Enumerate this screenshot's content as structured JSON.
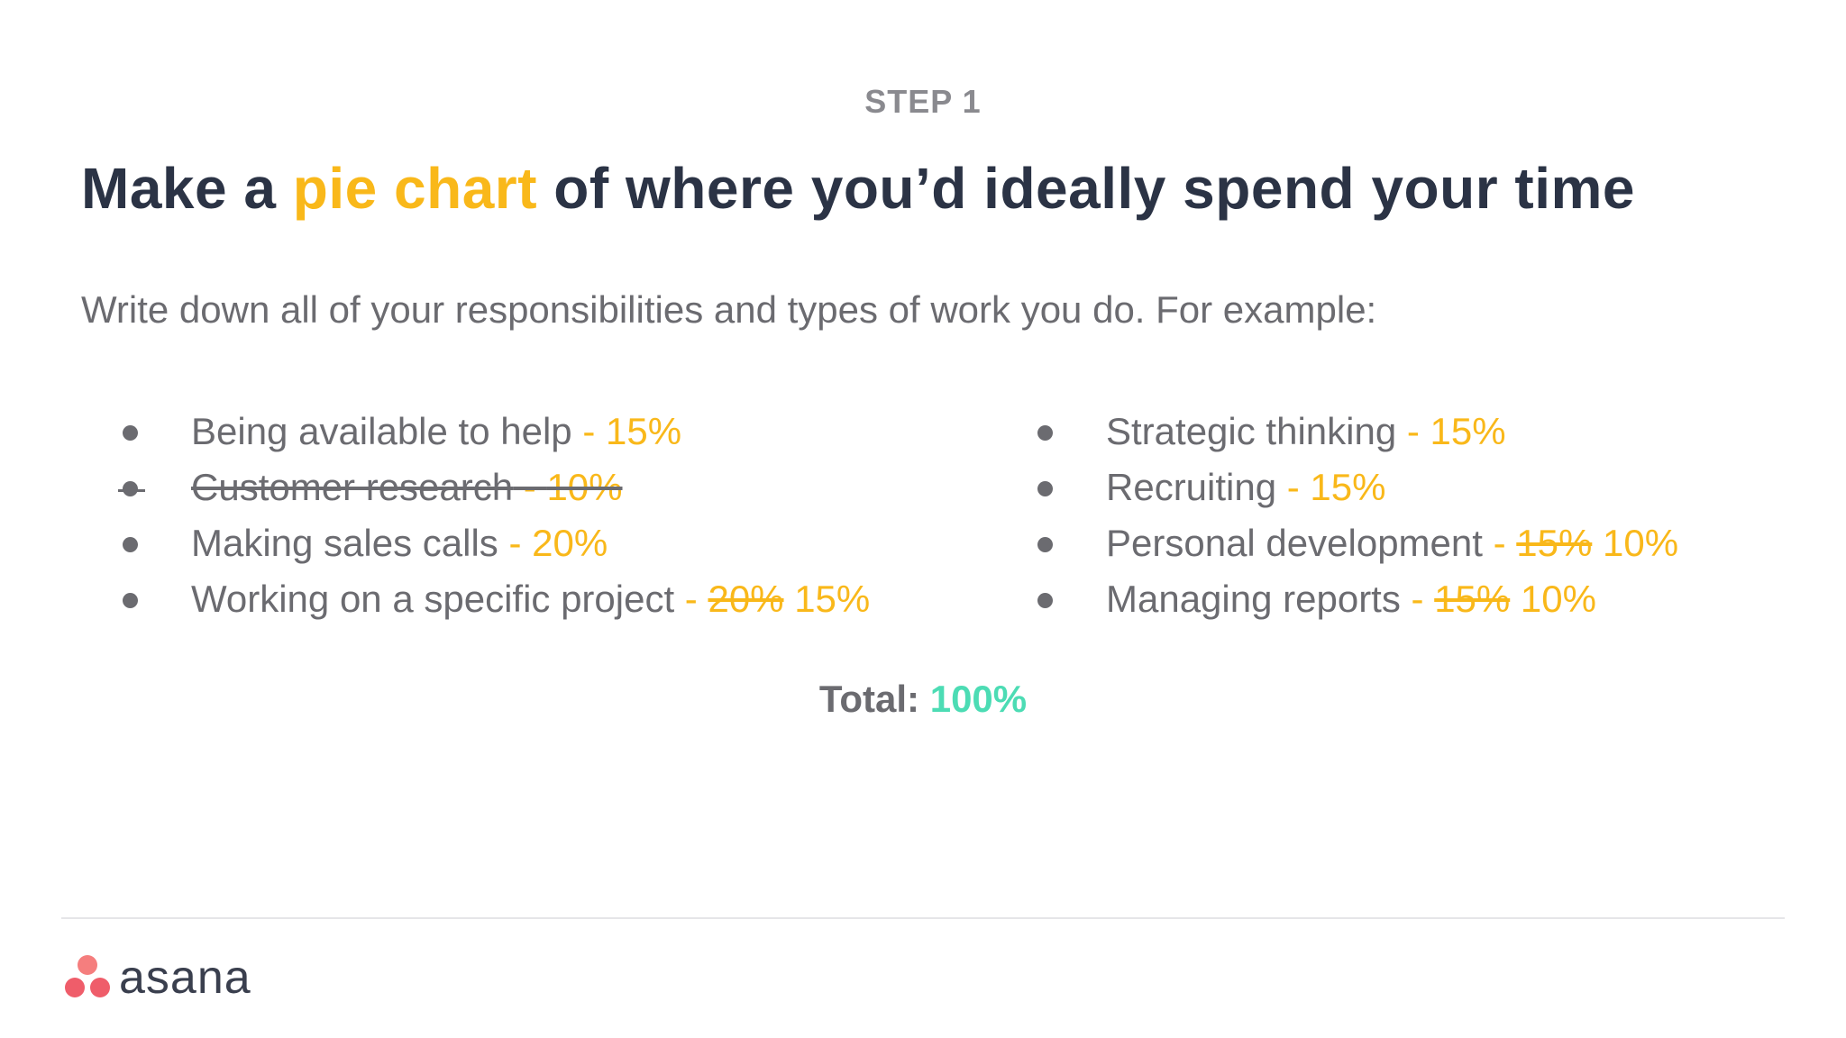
{
  "step_label": "STEP 1",
  "headline": {
    "part1": "Make a ",
    "highlight": "pie chart",
    "part2": " of where you’d ideally spend your time"
  },
  "intro": "Write down all of your responsibilities and types of work you do. For example:",
  "left_items": [
    {
      "label": "Being available to help",
      "sep": " - ",
      "old_pct": "",
      "pct": "15%"
    },
    {
      "label": "Customer research",
      "sep": " - ",
      "old_pct": "",
      "pct": "10%",
      "struck": true
    },
    {
      "label": "Making sales calls",
      "sep": " - ",
      "old_pct": "",
      "pct": "20%"
    },
    {
      "label": "Working on a specific project",
      "sep": " - ",
      "old_pct": "20%",
      "pct": "15%"
    }
  ],
  "right_items": [
    {
      "label": "Strategic thinking",
      "sep": " - ",
      "old_pct": "",
      "pct": "15%"
    },
    {
      "label": "Recruiting",
      "sep": " - ",
      "old_pct": "",
      "pct": "15%"
    },
    {
      "label": "Personal development",
      "sep": " - ",
      "old_pct": "15%",
      "pct": "10%"
    },
    {
      "label": "Managing reports",
      "sep": " - ",
      "old_pct": "15%",
      "pct": "10%"
    }
  ],
  "total": {
    "label": "Total: ",
    "value": "100%"
  },
  "logo": {
    "text": "asana"
  },
  "colors": {
    "heading": "#2b3345",
    "accent": "#f9b81a",
    "body_text": "#6b6b70",
    "total_value": "#4cdcb4",
    "logo_dots": "#ef5d6a"
  }
}
